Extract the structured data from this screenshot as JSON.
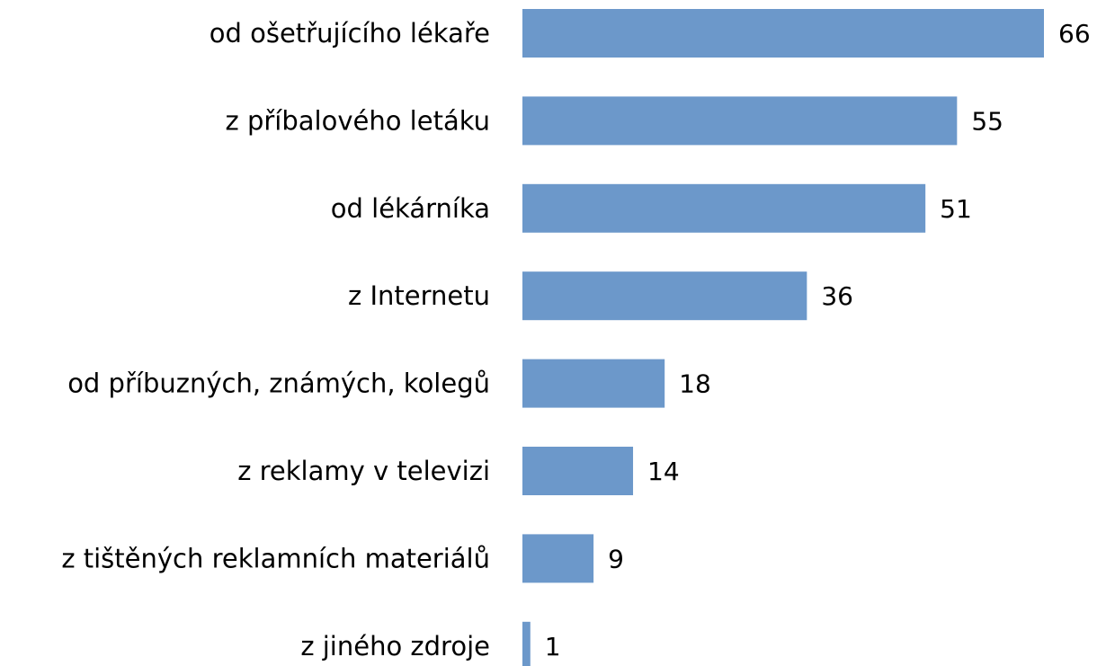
{
  "chart_data": {
    "type": "bar",
    "orientation": "horizontal",
    "categories": [
      "od ošetřujícího lékaře",
      "z příbalového letáku",
      "od lékárníka",
      "z Internetu",
      "od příbuzných, známých, kolegů",
      "z reklamy v televizi",
      "z tištěných reklamních materiálů",
      "z jiného zdroje"
    ],
    "values": [
      66,
      55,
      51,
      36,
      18,
      14,
      9,
      1
    ],
    "color": "#6c98ca"
  }
}
